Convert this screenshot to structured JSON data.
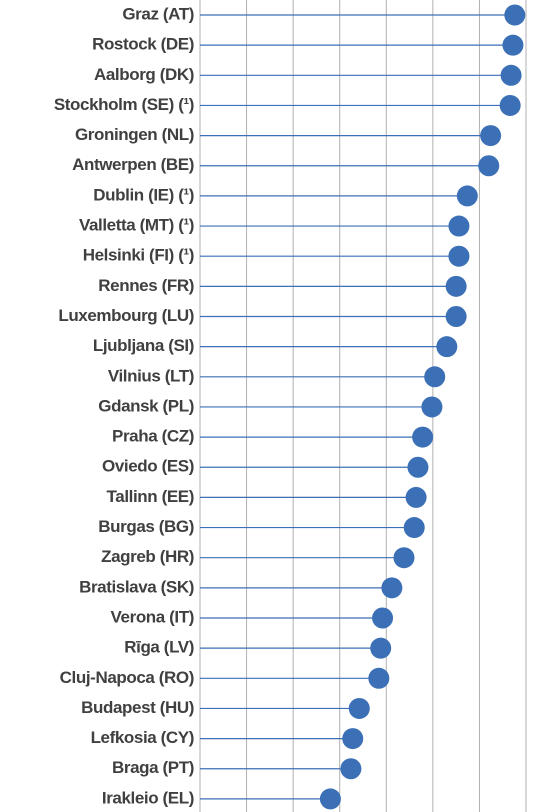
{
  "chart_data": {
    "type": "lollipop",
    "orientation": "horizontal",
    "categories": [
      "Graz (AT)",
      "Rostock (DE)",
      "Aalborg (DK)",
      "Stockholm (SE) (¹)",
      "Groningen (NL)",
      "Antwerpen (BE)",
      "Dublin (IE) (¹)",
      "Valletta (MT) (¹)",
      "Helsinki (FI) (¹)",
      "Rennes (FR)",
      "Luxembourg (LU)",
      "Ljubljana (SI)",
      "Vilnius (LT)",
      "Gdansk (PL)",
      "Praha (CZ)",
      "Oviedo (ES)",
      "Tallinn (EE)",
      "Burgas (BG)",
      "Zagreb (HR)",
      "Bratislava (SK)",
      "Verona (IT)",
      "Rīga (LV)",
      "Cluj-Napoca (RO)",
      "Budapest (HU)",
      "Lefkosia (CY)",
      "Braga (PT)",
      "Irakleio (EL)"
    ],
    "values": [
      98.8,
      98.6,
      98.4,
      98.3,
      96.2,
      96.0,
      93.7,
      92.8,
      92.8,
      92.5,
      92.5,
      91.5,
      90.2,
      89.9,
      88.9,
      88.4,
      88.2,
      88.0,
      86.9,
      85.6,
      84.6,
      84.4,
      84.2,
      82.1,
      81.4,
      81.2,
      79.0
    ],
    "color": "#3b6fb6",
    "xlim": [
      65,
      100
    ],
    "xticks": [
      65,
      70,
      75,
      80,
      85,
      90,
      95,
      100
    ],
    "grid": true
  }
}
